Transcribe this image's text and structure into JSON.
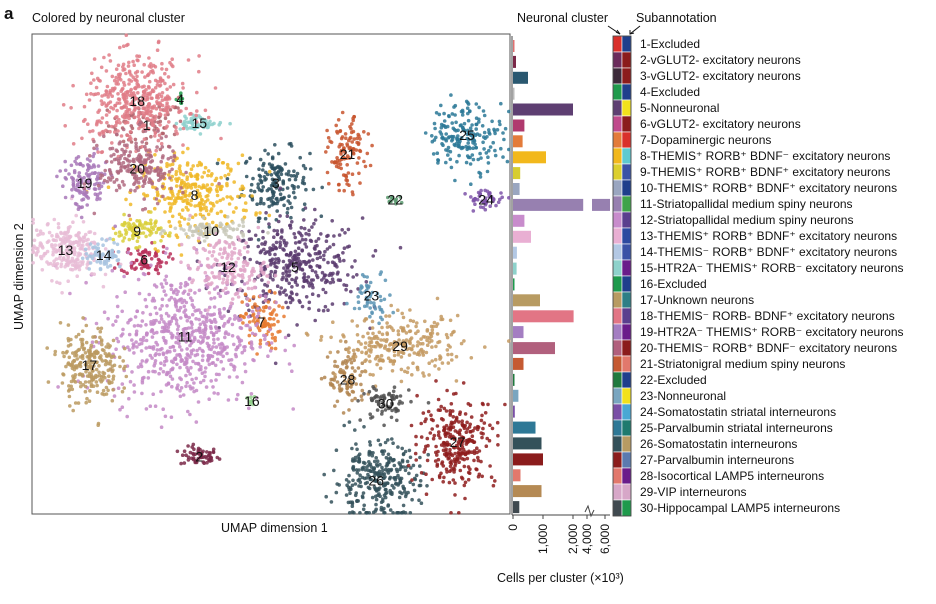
{
  "panel_letter": "a",
  "umap": {
    "title": "Colored by neuronal cluster",
    "xlabel": "UMAP dimension 1",
    "ylabel": "UMAP dimension 2"
  },
  "header": {
    "neuronal_cluster": "Neuronal cluster",
    "subannotation": "Subannotation"
  },
  "chart_data": [
    {
      "type": "scatter",
      "title": "Colored by neuronal cluster",
      "xlabel": "UMAP dimension 1",
      "ylabel": "UMAP dimension 2",
      "clusters": [
        {
          "id": "1",
          "x": -0.52,
          "y": 0.62,
          "sx": 0.08,
          "sy": 0.05,
          "n": 70,
          "color": "#b0606a"
        },
        {
          "id": "2",
          "x": -0.3,
          "y": -0.76,
          "sx": 0.04,
          "sy": 0.02,
          "n": 60,
          "color": "#7a2848"
        },
        {
          "id": "3",
          "x": 0.02,
          "y": 0.38,
          "sx": 0.07,
          "sy": 0.07,
          "n": 170,
          "color": "#2c4f5e"
        },
        {
          "id": "4",
          "x": -0.38,
          "y": 0.73,
          "sx": 0.01,
          "sy": 0.01,
          "n": 10,
          "color": "#1f9a4a"
        },
        {
          "id": "5",
          "x": 0.1,
          "y": 0.03,
          "sx": 0.14,
          "sy": 0.1,
          "n": 380,
          "color": "#5a3b6e"
        },
        {
          "id": "6",
          "x": -0.53,
          "y": 0.06,
          "sx": 0.05,
          "sy": 0.03,
          "n": 75,
          "color": "#b8305a"
        },
        {
          "id": "7",
          "x": -0.04,
          "y": -0.2,
          "sx": 0.04,
          "sy": 0.06,
          "n": 90,
          "color": "#e6792f"
        },
        {
          "id": "8",
          "x": -0.32,
          "y": 0.33,
          "sx": 0.12,
          "sy": 0.08,
          "n": 300,
          "color": "#f0b828"
        },
        {
          "id": "9",
          "x": -0.56,
          "y": 0.18,
          "sx": 0.05,
          "sy": 0.03,
          "n": 80,
          "color": "#d9cf3a"
        },
        {
          "id": "10",
          "x": -0.25,
          "y": 0.18,
          "sx": 0.08,
          "sy": 0.02,
          "n": 90,
          "color": "#c8c8b8"
        },
        {
          "id": "11",
          "x": -0.36,
          "y": -0.26,
          "sx": 0.16,
          "sy": 0.14,
          "n": 650,
          "color": "#c48ac7"
        },
        {
          "id": "12",
          "x": -0.18,
          "y": 0.03,
          "sx": 0.08,
          "sy": 0.06,
          "n": 160,
          "color": "#e0a6c8"
        },
        {
          "id": "13",
          "x": -0.86,
          "y": 0.1,
          "sx": 0.07,
          "sy": 0.06,
          "n": 240,
          "color": "#e8bcd6"
        },
        {
          "id": "14",
          "x": -0.7,
          "y": 0.08,
          "sx": 0.04,
          "sy": 0.03,
          "n": 70,
          "color": "#a8c4e0"
        },
        {
          "id": "15",
          "x": -0.3,
          "y": 0.63,
          "sx": 0.05,
          "sy": 0.015,
          "n": 55,
          "color": "#8dd0cc"
        },
        {
          "id": "16",
          "x": -0.08,
          "y": -0.53,
          "sx": 0.01,
          "sy": 0.01,
          "n": 8,
          "color": "#8fcf88"
        },
        {
          "id": "17",
          "x": -0.76,
          "y": -0.38,
          "sx": 0.06,
          "sy": 0.08,
          "n": 240,
          "color": "#bb9a60"
        },
        {
          "id": "18",
          "x": -0.56,
          "y": 0.72,
          "sx": 0.11,
          "sy": 0.09,
          "n": 420,
          "color": "#e17c87"
        },
        {
          "id": "19",
          "x": -0.78,
          "y": 0.38,
          "sx": 0.05,
          "sy": 0.06,
          "n": 120,
          "color": "#a878b8"
        },
        {
          "id": "20",
          "x": -0.56,
          "y": 0.44,
          "sx": 0.08,
          "sy": 0.07,
          "n": 210,
          "color": "#b06a80"
        },
        {
          "id": "21",
          "x": 0.32,
          "y": 0.5,
          "sx": 0.04,
          "sy": 0.07,
          "n": 110,
          "color": "#c8552e"
        },
        {
          "id": "22",
          "x": 0.52,
          "y": 0.31,
          "sx": 0.02,
          "sy": 0.01,
          "n": 12,
          "color": "#5a9a70"
        },
        {
          "id": "23",
          "x": 0.42,
          "y": -0.09,
          "sx": 0.04,
          "sy": 0.05,
          "n": 55,
          "color": "#5a94b4"
        },
        {
          "id": "24",
          "x": 0.9,
          "y": 0.31,
          "sx": 0.04,
          "sy": 0.02,
          "n": 45,
          "color": "#7d52a8"
        },
        {
          "id": "25",
          "x": 0.82,
          "y": 0.58,
          "sx": 0.08,
          "sy": 0.07,
          "n": 190,
          "color": "#2a7896"
        },
        {
          "id": "26",
          "x": 0.44,
          "y": -0.86,
          "sx": 0.09,
          "sy": 0.08,
          "n": 300,
          "color": "#34515a"
        },
        {
          "id": "27",
          "x": 0.78,
          "y": -0.7,
          "sx": 0.08,
          "sy": 0.09,
          "n": 280,
          "color": "#8e1c1c"
        },
        {
          "id": "28",
          "x": 0.32,
          "y": -0.44,
          "sx": 0.04,
          "sy": 0.06,
          "n": 90,
          "color": "#b18550"
        },
        {
          "id": "29",
          "x": 0.54,
          "y": -0.3,
          "sx": 0.13,
          "sy": 0.06,
          "n": 260,
          "color": "#c49a62"
        },
        {
          "id": "30",
          "x": 0.48,
          "y": -0.54,
          "sx": 0.05,
          "sy": 0.04,
          "n": 70,
          "color": "#505050"
        }
      ]
    },
    {
      "type": "bar",
      "orientation": "horizontal",
      "xlabel": "Cells per cluster (×10³)",
      "xticks": [
        "0",
        "1,000",
        "2,000",
        "4,000",
        "6,000"
      ],
      "axis_break": true,
      "categories": [
        "1",
        "2",
        "3",
        "4",
        "5",
        "6",
        "7",
        "8",
        "9",
        "10",
        "11",
        "12",
        "13",
        "14",
        "15",
        "16",
        "17",
        "18",
        "19",
        "20",
        "21",
        "22",
        "23",
        "24",
        "25",
        "26",
        "27",
        "28",
        "29",
        "30"
      ],
      "values": [
        30,
        100,
        500,
        10,
        2000,
        380,
        320,
        1100,
        240,
        220,
        3700,
        380,
        600,
        130,
        120,
        20,
        900,
        2100,
        350,
        1400,
        350,
        10,
        180,
        60,
        750,
        950,
        1000,
        250,
        950,
        210
      ],
      "colors": [
        "#e07070",
        "#7a2848",
        "#2a5870",
        "#bbbbbb",
        "#5e3f72",
        "#b03a6e",
        "#e37b3a",
        "#f2b81c",
        "#d6cd30",
        "#9aa6c0",
        "#9780b0",
        "#c88ccc",
        "#e9afd3",
        "#b3c8e4",
        "#8ed2cb",
        "#1d9a4c",
        "#b89b62",
        "#e27585",
        "#a47ec2",
        "#b1607d",
        "#c55a32",
        "#1f7a3e",
        "#7aa6c0",
        "#7a4fa6",
        "#2e7896",
        "#34515a",
        "#8b1c1c",
        "#e2786c",
        "#b58a54",
        "#404a50"
      ]
    }
  ],
  "legend": {
    "labels": [
      "1-Excluded",
      "2-vGLUT2- excitatory neurons",
      "3-vGLUT2- excitatory neurons",
      "4-Excluded",
      "5-Nonneuronal",
      "6-vGLUT2- excitatory neurons",
      "7-Dopaminergic neurons",
      "8-THEMIS⁺ RORB⁺ BDNF⁻ excitatory neurons",
      "9-THEMIS⁺ RORB⁺ BDNF⁺ excitatory neurons",
      "10-THEMIS⁺ RORB⁺ BDNF⁺ excitatory neurons",
      "11-Striatopallidal medium spiny neurons",
      "12-Striatopallidal medium spiny neurons",
      "13-THEMIS⁺ RORB⁺ BDNF⁺ excitatory neurons",
      "14-THEMIS⁻ RORB⁺ BDNF⁺ excitatory neurons",
      "15-HTR2A⁻ THEMIS⁺ RORB⁻ excitatory neurons",
      "16-Excluded",
      "17-Unknown neurons",
      "18-THEMIS⁻ RORB- BDNF⁺ excitatory neurons",
      "19-HTR2A⁻ THEMIS⁺ RORB⁻ excitatory neurons",
      "20-THEMIS⁻ RORB⁺ BDNF⁻ excitatory neurons",
      "21-Striatonigral medium spiny neurons",
      "22-Excluded",
      "23-Nonneuronal",
      "24-Somatostatin striatal interneurons",
      "25-Parvalbumin striatal interneurons",
      "26-Somatostatin interneurons",
      "27-Parvalbumin interneurons",
      "28-Isocortical LAMP5 interneurons",
      "29-VIP interneurons",
      "30-Hippocampal LAMP5 interneurons"
    ],
    "neuronal_cluster_colors": [
      "#d9302b",
      "#6b2c5c",
      "#3c2a3a",
      "#1f9a4c",
      "#5e3f72",
      "#c04a8c",
      "#e37b3a",
      "#f2b81c",
      "#dccf2e",
      "#9aa6c0",
      "#9780b0",
      "#c88ccc",
      "#e9afd3",
      "#b3c8e4",
      "#8ed2cb",
      "#1d9a4c",
      "#b89b62",
      "#e27585",
      "#a47ec2",
      "#b1607d",
      "#c55a32",
      "#1f7a3e",
      "#7aa6c0",
      "#7a4fa6",
      "#2e7896",
      "#34515a",
      "#8b1c1c",
      "#e2786c",
      "#d7a7c8",
      "#404a50"
    ],
    "subannotation_colors": [
      "#1f3f8c",
      "#8b1c1c",
      "#8b1c1c",
      "#1f3f8c",
      "#f2e11c",
      "#8b1c1c",
      "#d9302b",
      "#5ecad0",
      "#3a52a6",
      "#1f3f8c",
      "#3fa34a",
      "#5b3f8e",
      "#2d4aa0",
      "#3a52a6",
      "#6a1c8a",
      "#1f3f8c",
      "#2e7f86",
      "#5b3f8e",
      "#6a1c8a",
      "#8b1c1c",
      "#e2786c",
      "#1f3f8c",
      "#f2e11c",
      "#4aa8d4",
      "#1f7a6e",
      "#b89b62",
      "#5b7ab0",
      "#6a1c8a",
      "#d7a7c8",
      "#1f9a4c"
    ]
  }
}
